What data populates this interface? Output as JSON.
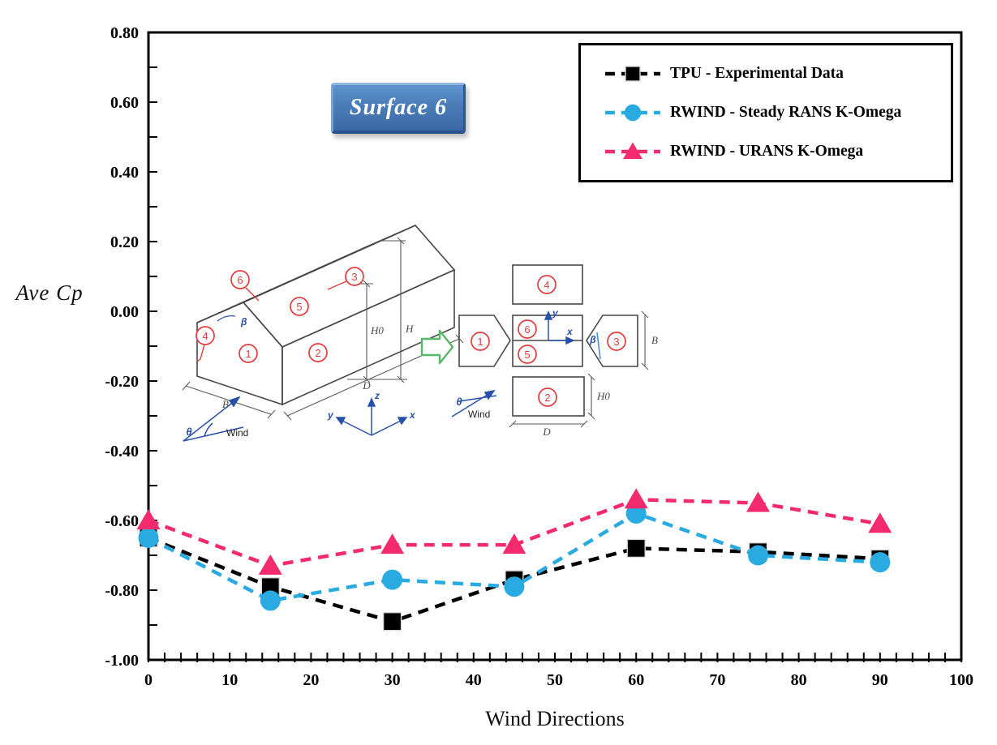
{
  "chart_data": {
    "type": "line",
    "badge": "Surface 6",
    "xlabel": "Wind Directions",
    "ylabel": "Ave Cp",
    "xlim": [
      0,
      100
    ],
    "ylim": [
      -1.0,
      0.8
    ],
    "x_major_ticks": [
      0,
      10,
      20,
      30,
      40,
      50,
      60,
      70,
      80,
      90,
      100
    ],
    "x_minor_step": 2,
    "y_major_ticks": [
      0.8,
      0.6,
      0.4,
      0.2,
      0.0,
      -0.2,
      -0.4,
      -0.6,
      -0.8,
      -1.0
    ],
    "y_minor_step": 0.1,
    "grid": false,
    "legend_position": "top-right",
    "x": [
      0,
      15,
      30,
      45,
      60,
      75,
      90
    ],
    "series": [
      {
        "name": "TPU - Experimental Data",
        "marker": "square",
        "color": "#000000",
        "values": [
          -0.65,
          -0.79,
          -0.89,
          -0.77,
          -0.68,
          -0.69,
          -0.71
        ]
      },
      {
        "name": "RWIND - Steady RANS K-Omega",
        "marker": "circle",
        "color": "#29ABE2",
        "values": [
          -0.65,
          -0.83,
          -0.77,
          -0.79,
          -0.58,
          -0.7,
          -0.72
        ]
      },
      {
        "name": "RWIND - URANS K-Omega",
        "marker": "triangle",
        "color": "#F42A6E",
        "values": [
          -0.6,
          -0.73,
          -0.67,
          -0.67,
          -0.54,
          -0.55,
          -0.61
        ]
      }
    ]
  },
  "diagram": {
    "labels": {
      "n1": "1",
      "n2": "2",
      "n3": "3",
      "n4": "4",
      "n5": "5",
      "n6": "6",
      "beta": "β",
      "theta": "θ",
      "wind": "Wind",
      "B": "B",
      "D": "D",
      "H": "H",
      "H0": "H0",
      "x": "x",
      "y": "y",
      "z": "z"
    }
  }
}
